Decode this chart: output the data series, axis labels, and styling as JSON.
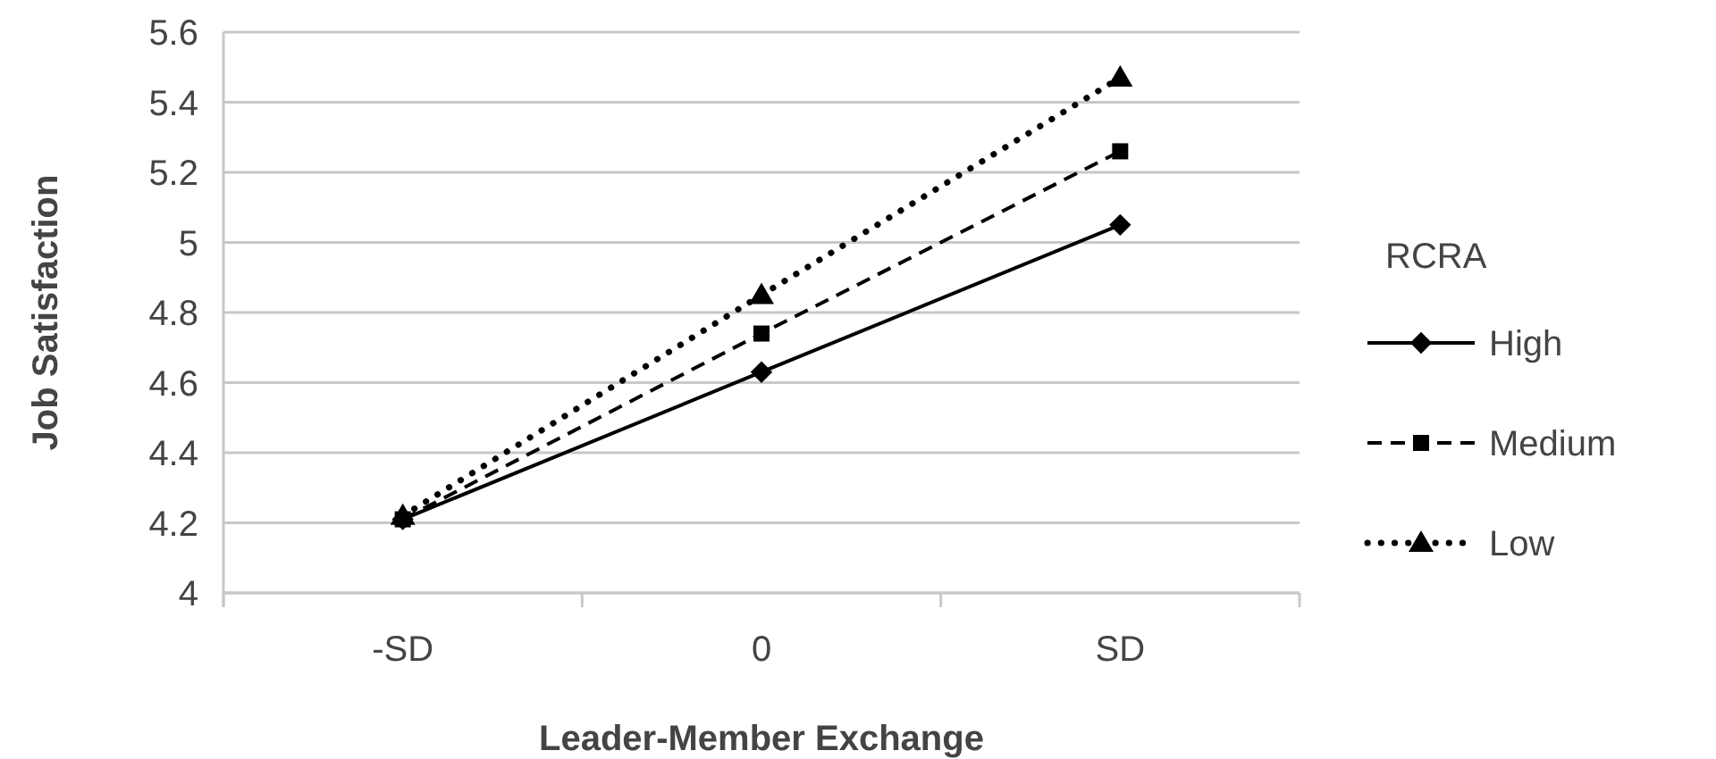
{
  "chart_data": {
    "type": "line",
    "xlabel": "Leader-Member Exchange",
    "ylabel": "Job Satisfaction",
    "legend_title": "RCRA",
    "categories": [
      "-SD",
      "0",
      "SD"
    ],
    "series": [
      {
        "name": "High",
        "color": "#000000",
        "marker": "diamond",
        "line_style": "solid",
        "values": [
          4.21,
          4.63,
          5.05
        ]
      },
      {
        "name": "Medium",
        "color": "#000000",
        "marker": "square",
        "line_style": "dashed",
        "values": [
          4.21,
          4.74,
          5.26
        ]
      },
      {
        "name": "Low",
        "color": "#000000",
        "marker": "triangle",
        "line_style": "dotted",
        "values": [
          4.22,
          4.85,
          5.47
        ]
      }
    ],
    "ylim": [
      4,
      5.6
    ],
    "yticks": [
      4,
      4.2,
      4.4,
      4.6,
      4.8,
      5,
      5.2,
      5.4,
      5.6
    ],
    "grid": "y",
    "legend": "right"
  }
}
